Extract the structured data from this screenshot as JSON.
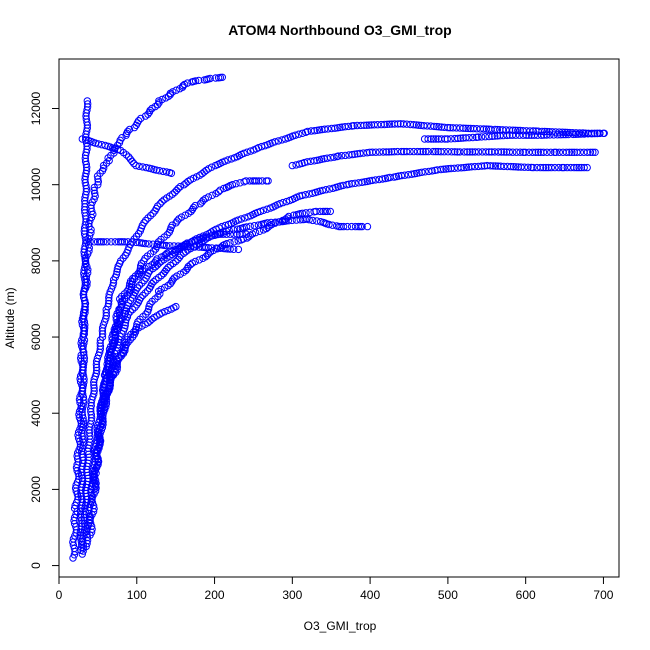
{
  "chart_data": {
    "type": "scatter",
    "title": "ATOM4 Northbound O3_GMI_trop",
    "xlabel": "O3_GMI_trop",
    "ylabel": "Altitude (m)",
    "xlim": [
      0,
      720
    ],
    "ylim": [
      -300,
      13300
    ],
    "xticks": [
      0,
      100,
      200,
      300,
      400,
      500,
      600,
      700
    ],
    "yticks": [
      0,
      2000,
      4000,
      6000,
      8000,
      10000,
      12000
    ],
    "marker": "open circle",
    "color": "#0000ff",
    "grid": false,
    "legend": "none",
    "series": [
      {
        "x": [
          18,
          20,
          22,
          25,
          28,
          30,
          32,
          35,
          36,
          38,
          40,
          42,
          45,
          48,
          52,
          58,
          65,
          72,
          78,
          85,
          95,
          110,
          120,
          130,
          145,
          160,
          170,
          185,
          200,
          210
        ],
        "y": [
          200,
          700,
          1500,
          2800,
          4200,
          5600,
          6800,
          7600,
          8100,
          8500,
          8900,
          9300,
          9700,
          10000,
          10300,
          10500,
          10700,
          10900,
          11100,
          11300,
          11500,
          11800,
          12000,
          12200,
          12400,
          12600,
          12700,
          12750,
          12800,
          12820
        ]
      },
      {
        "x": [
          30,
          34,
          38,
          42,
          48,
          55,
          62,
          70,
          80,
          95,
          110,
          130,
          160,
          200,
          260,
          320,
          380,
          440,
          500,
          560,
          620,
          680,
          700
        ],
        "y": [
          300,
          1500,
          3000,
          4200,
          5200,
          6000,
          6800,
          7500,
          8000,
          8500,
          9000,
          9500,
          10000,
          10500,
          11000,
          11400,
          11550,
          11600,
          11500,
          11450,
          11400,
          11350,
          11350
        ]
      },
      {
        "x": [
          35,
          42,
          50,
          60,
          75,
          95,
          120,
          160,
          210,
          260,
          310,
          370,
          430,
          490,
          550,
          610,
          650,
          680
        ],
        "y": [
          500,
          2000,
          3600,
          5000,
          6200,
          7100,
          7800,
          8400,
          8900,
          9300,
          9700,
          10000,
          10200,
          10400,
          10500,
          10450,
          10450,
          10450
        ]
      },
      {
        "x": [
          40,
          48,
          56,
          66,
          80,
          100,
          130,
          170,
          220,
          270,
          320,
          360,
          395
        ],
        "y": [
          800,
          2500,
          4200,
          5600,
          6800,
          7600,
          8100,
          8500,
          8800,
          9000,
          9100,
          8900,
          8900
        ]
      },
      {
        "x": [
          28,
          30,
          32,
          34,
          36
        ],
        "y": [
          400,
          3000,
          6000,
          9500,
          12200
        ]
      },
      {
        "x": [
          30,
          80,
          100,
          145
        ],
        "y": [
          11200,
          10900,
          10500,
          10300
        ]
      },
      {
        "x": [
          40,
          90,
          140,
          190,
          230
        ],
        "y": [
          8500,
          8500,
          8400,
          8350,
          8300
        ]
      },
      {
        "x": [
          300,
          320,
          360,
          400,
          440,
          480,
          520,
          560,
          600,
          640,
          690
        ],
        "y": [
          10500,
          10600,
          10750,
          10850,
          10870,
          10870,
          10860,
          10860,
          10850,
          10850,
          10850
        ]
      },
      {
        "x": [
          470,
          500,
          540,
          580,
          620,
          660,
          700
        ],
        "y": [
          11200,
          11200,
          11250,
          11300,
          11300,
          11320,
          11350
        ]
      },
      {
        "x": [
          45,
          60,
          80,
          110,
          150,
          180,
          210,
          240,
          270
        ],
        "y": [
          2000,
          5000,
          7000,
          8000,
          9000,
          9500,
          9900,
          10100,
          10100
        ]
      },
      {
        "x": [
          50,
          70,
          90,
          120,
          160,
          200,
          240
        ],
        "y": [
          3000,
          5500,
          6600,
          7400,
          8200,
          8700,
          8700
        ]
      },
      {
        "x": [
          55,
          75,
          100,
          130,
          150
        ],
        "y": [
          4000,
          5400,
          6200,
          6600,
          6800
        ]
      },
      {
        "x": [
          60,
          90,
          130,
          170,
          210,
          240,
          300,
          330,
          350
        ],
        "y": [
          4500,
          6000,
          7200,
          7900,
          8400,
          8600,
          9200,
          9300,
          9300
        ]
      }
    ]
  }
}
